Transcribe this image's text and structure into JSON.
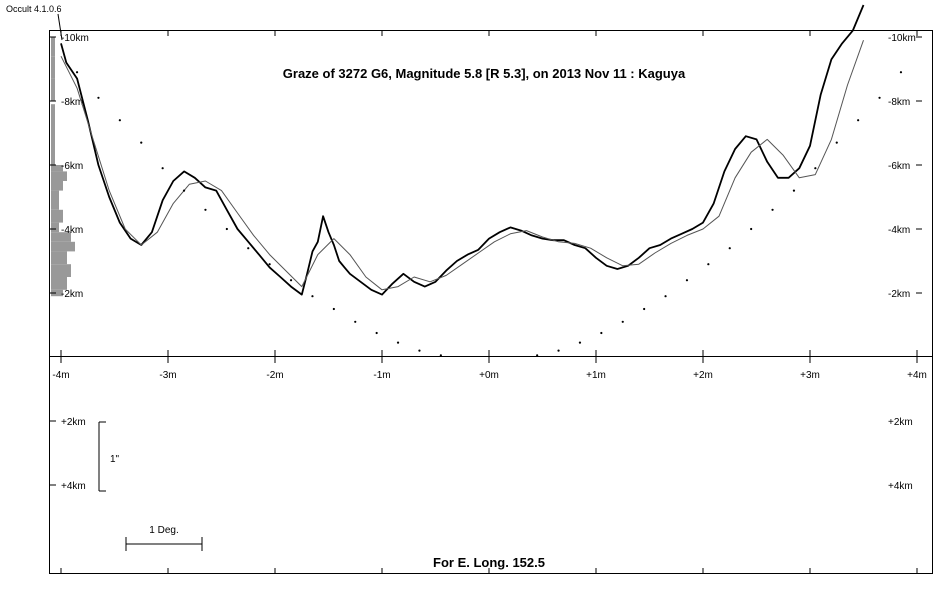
{
  "chart_data": {
    "type": "line",
    "title": "Graze of  3272 G6,  Magnitude 5.8 [R 5.3],  on 2013 Nov 11  :  Kaguya",
    "footer": "For E. Long. 152.5",
    "version_label": "Occult 4.1.0.6",
    "x_axis": {
      "unit": "minutes",
      "range": [
        -4.12,
        4.12
      ],
      "ticks": [
        -4,
        -3,
        -2,
        -1,
        0,
        1,
        2,
        3,
        4
      ],
      "tick_labels": [
        "-4m",
        "-3m",
        "-2m",
        "-1m",
        "+0m",
        "+1m",
        "+2m",
        "+3m",
        "+4m"
      ]
    },
    "y_axis_upper": {
      "unit": "km",
      "range": [
        -10,
        0
      ],
      "ticks": [
        -10,
        -8,
        -6,
        -4,
        -2
      ],
      "tick_labels": [
        "-10km",
        "-8km",
        "-6km",
        "-4km",
        "-2km"
      ]
    },
    "y_axis_lower": {
      "unit": "km",
      "ticks": [
        2,
        4
      ],
      "tick_labels": [
        "+2km",
        "+4km"
      ]
    },
    "scale_bars": {
      "arcsec_label": "1\"",
      "degree_label": "1 Deg."
    },
    "series": [
      {
        "role": "lunar limb profile (observed)",
        "color": "#000000",
        "x": [
          -4.0,
          -3.95,
          -3.85,
          -3.75,
          -3.65,
          -3.55,
          -3.45,
          -3.35,
          -3.25,
          -3.15,
          -3.05,
          -2.95,
          -2.85,
          -2.75,
          -2.65,
          -2.55,
          -2.45,
          -2.35,
          -2.25,
          -2.15,
          -2.05,
          -1.95,
          -1.85,
          -1.75,
          -1.7,
          -1.65,
          -1.6,
          -1.55,
          -1.5,
          -1.45,
          -1.4,
          -1.35,
          -1.3,
          -1.2,
          -1.1,
          -1.0,
          -0.9,
          -0.8,
          -0.7,
          -0.6,
          -0.5,
          -0.4,
          -0.3,
          -0.2,
          -0.1,
          0.0,
          0.1,
          0.2,
          0.3,
          0.4,
          0.5,
          0.6,
          0.7,
          0.8,
          0.9,
          1.0,
          1.1,
          1.2,
          1.3,
          1.4,
          1.5,
          1.6,
          1.7,
          1.8,
          1.9,
          2.0,
          2.1,
          2.2,
          2.3,
          2.4,
          2.5,
          2.6,
          2.7,
          2.8,
          2.9,
          3.0,
          3.1,
          3.2,
          3.3,
          3.4,
          3.5
        ],
        "y": [
          -9.8,
          -9.2,
          -8.7,
          -7.4,
          -6.0,
          -5.0,
          -4.2,
          -3.7,
          -3.5,
          -3.9,
          -4.9,
          -5.5,
          -5.8,
          -5.6,
          -5.3,
          -5.2,
          -4.6,
          -4.0,
          -3.6,
          -3.2,
          -2.8,
          -2.5,
          -2.2,
          -1.95,
          -2.6,
          -3.3,
          -3.6,
          -4.4,
          -3.9,
          -3.5,
          -3.0,
          -2.8,
          -2.6,
          -2.35,
          -2.1,
          -1.95,
          -2.3,
          -2.6,
          -2.35,
          -2.2,
          -2.35,
          -2.7,
          -3.0,
          -3.2,
          -3.35,
          -3.7,
          -3.9,
          -4.05,
          -3.95,
          -3.8,
          -3.7,
          -3.65,
          -3.65,
          -3.5,
          -3.4,
          -3.1,
          -2.85,
          -2.75,
          -2.85,
          -3.1,
          -3.4,
          -3.5,
          -3.7,
          -3.85,
          -4.0,
          -4.2,
          -4.8,
          -5.8,
          -6.5,
          -6.9,
          -6.8,
          -6.1,
          -5.6,
          -5.6,
          -5.9,
          -6.6,
          -8.2,
          -9.3,
          -9.8,
          -10.2,
          -11.0
        ]
      },
      {
        "role": "smoothed profile",
        "color": "#555555",
        "x": [
          -4.0,
          -3.85,
          -3.7,
          -3.55,
          -3.4,
          -3.25,
          -3.1,
          -2.95,
          -2.8,
          -2.65,
          -2.5,
          -2.35,
          -2.2,
          -2.05,
          -1.9,
          -1.75,
          -1.6,
          -1.45,
          -1.3,
          -1.15,
          -1.0,
          -0.85,
          -0.7,
          -0.55,
          -0.4,
          -0.25,
          -0.1,
          0.05,
          0.2,
          0.35,
          0.5,
          0.65,
          0.8,
          0.95,
          1.1,
          1.25,
          1.4,
          1.55,
          1.7,
          1.85,
          2.0,
          2.15,
          2.3,
          2.45,
          2.6,
          2.75,
          2.9,
          3.05,
          3.2,
          3.35,
          3.5
        ],
        "y": [
          -9.4,
          -8.4,
          -6.8,
          -5.2,
          -4.0,
          -3.5,
          -3.9,
          -4.8,
          -5.4,
          -5.5,
          -5.2,
          -4.5,
          -3.8,
          -3.2,
          -2.7,
          -2.2,
          -3.2,
          -3.7,
          -3.2,
          -2.5,
          -2.1,
          -2.2,
          -2.5,
          -2.35,
          -2.55,
          -2.9,
          -3.25,
          -3.6,
          -3.85,
          -3.95,
          -3.75,
          -3.6,
          -3.55,
          -3.4,
          -3.1,
          -2.85,
          -2.9,
          -3.25,
          -3.55,
          -3.8,
          -4.0,
          -4.4,
          -5.6,
          -6.4,
          -6.8,
          -6.3,
          -5.6,
          -5.7,
          -6.8,
          -8.5,
          -9.9
        ]
      },
      {
        "role": "graze limit path (dotted)",
        "color": "#000000",
        "x": [
          -3.85,
          -3.65,
          -3.45,
          -3.25,
          -3.05,
          -2.85,
          -2.65,
          -2.45,
          -2.25,
          -2.05,
          -1.85,
          -1.65,
          -1.45,
          -1.25,
          -1.05,
          -0.85,
          -0.65,
          -0.45,
          0.45,
          0.65,
          0.85,
          1.05,
          1.25,
          1.45,
          1.65,
          1.85,
          2.05,
          2.25,
          2.45,
          2.65,
          2.85,
          3.05,
          3.25,
          3.45,
          3.65,
          3.85
        ],
        "y": [
          -8.9,
          -8.1,
          -7.4,
          -6.7,
          -5.9,
          -5.2,
          -4.6,
          -4.0,
          -3.4,
          -2.9,
          -2.4,
          -1.9,
          -1.5,
          -1.1,
          -0.75,
          -0.45,
          -0.2,
          -0.05,
          -0.05,
          -0.2,
          -0.45,
          -0.75,
          -1.1,
          -1.5,
          -1.9,
          -2.4,
          -2.9,
          -3.4,
          -4.0,
          -4.6,
          -5.2,
          -5.9,
          -6.7,
          -7.4,
          -8.1,
          -8.9
        ]
      }
    ],
    "histogram": {
      "role": "left-edge grey bars",
      "color": "#999999",
      "bins": [
        {
          "y_from": -10.0,
          "y_to": -9.4,
          "value": 1
        },
        {
          "y_from": -9.4,
          "y_to": -8.7,
          "value": 1
        },
        {
          "y_from": -8.7,
          "y_to": -8.0,
          "value": 1
        },
        {
          "y_from": -7.9,
          "y_to": -7.0,
          "value": 1
        },
        {
          "y_from": -7.0,
          "y_to": -6.0,
          "value": 1
        },
        {
          "y_from": -6.0,
          "y_to": -5.8,
          "value": 3
        },
        {
          "y_from": -5.8,
          "y_to": -5.5,
          "value": 4
        },
        {
          "y_from": -5.5,
          "y_to": -5.2,
          "value": 3
        },
        {
          "y_from": -5.2,
          "y_to": -4.6,
          "value": 2
        },
        {
          "y_from": -4.6,
          "y_to": -4.2,
          "value": 3
        },
        {
          "y_from": -4.2,
          "y_to": -3.9,
          "value": 2
        },
        {
          "y_from": -3.9,
          "y_to": -3.6,
          "value": 5
        },
        {
          "y_from": -3.6,
          "y_to": -3.3,
          "value": 6
        },
        {
          "y_from": -3.3,
          "y_to": -2.9,
          "value": 4
        },
        {
          "y_from": -2.9,
          "y_to": -2.5,
          "value": 5
        },
        {
          "y_from": -2.5,
          "y_to": -2.1,
          "value": 4
        },
        {
          "y_from": -2.1,
          "y_to": -1.9,
          "value": 3
        }
      ]
    }
  }
}
